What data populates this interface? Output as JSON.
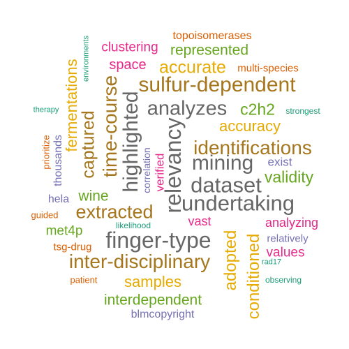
{
  "palette": {
    "teal": "#1b9e77",
    "orange": "#d95f02",
    "purple": "#7570b3",
    "magenta": "#e7298a",
    "green": "#66a61e",
    "gold": "#e6ab02",
    "brown": "#a6761d",
    "gray": "#666666"
  },
  "words": [
    {
      "text": "topoisomerases",
      "color": "orange"
    },
    {
      "text": "environments",
      "color": "teal"
    },
    {
      "text": "clustering",
      "color": "magenta"
    },
    {
      "text": "represented",
      "color": "green"
    },
    {
      "text": "fermentations",
      "color": "gold"
    },
    {
      "text": "space",
      "color": "magenta"
    },
    {
      "text": "accurate",
      "color": "gold"
    },
    {
      "text": "multi-species",
      "color": "orange"
    },
    {
      "text": "sulfur-dependent",
      "color": "brown"
    },
    {
      "text": "time-course",
      "color": "brown"
    },
    {
      "text": "highlighted",
      "color": "gray"
    },
    {
      "text": "analyzes",
      "color": "gray"
    },
    {
      "text": "c2h2",
      "color": "green"
    },
    {
      "text": "therapy",
      "color": "teal"
    },
    {
      "text": "strongest",
      "color": "teal"
    },
    {
      "text": "captured",
      "color": "brown"
    },
    {
      "text": "relevancy",
      "color": "gray"
    },
    {
      "text": "accuracy",
      "color": "gold"
    },
    {
      "text": "prioritize",
      "color": "orange"
    },
    {
      "text": "thousands",
      "color": "purple"
    },
    {
      "text": "correlation",
      "color": "purple"
    },
    {
      "text": "verified",
      "color": "magenta"
    },
    {
      "text": "identifications",
      "color": "brown"
    },
    {
      "text": "mining",
      "color": "gray"
    },
    {
      "text": "exist",
      "color": "purple"
    },
    {
      "text": "wine",
      "color": "green"
    },
    {
      "text": "dataset",
      "color": "gray"
    },
    {
      "text": "validity",
      "color": "green"
    },
    {
      "text": "hela",
      "color": "purple"
    },
    {
      "text": "undertaking",
      "color": "gray"
    },
    {
      "text": "guided",
      "color": "orange"
    },
    {
      "text": "extracted",
      "color": "brown"
    },
    {
      "text": "vast",
      "color": "magenta"
    },
    {
      "text": "likelihood",
      "color": "teal"
    },
    {
      "text": "analyzing",
      "color": "magenta"
    },
    {
      "text": "met4p",
      "color": "green"
    },
    {
      "text": "finger-type",
      "color": "gray"
    },
    {
      "text": "adopted",
      "color": "gold"
    },
    {
      "text": "conditioned",
      "color": "gold"
    },
    {
      "text": "relatively",
      "color": "purple"
    },
    {
      "text": "tsg-drug",
      "color": "orange"
    },
    {
      "text": "values",
      "color": "magenta"
    },
    {
      "text": "inter-disciplinary",
      "color": "brown"
    },
    {
      "text": "rad17",
      "color": "teal"
    },
    {
      "text": "patient",
      "color": "orange"
    },
    {
      "text": "samples",
      "color": "gold"
    },
    {
      "text": "observing",
      "color": "teal"
    },
    {
      "text": "interdependent",
      "color": "green"
    },
    {
      "text": "blmcopyright",
      "color": "purple"
    }
  ]
}
